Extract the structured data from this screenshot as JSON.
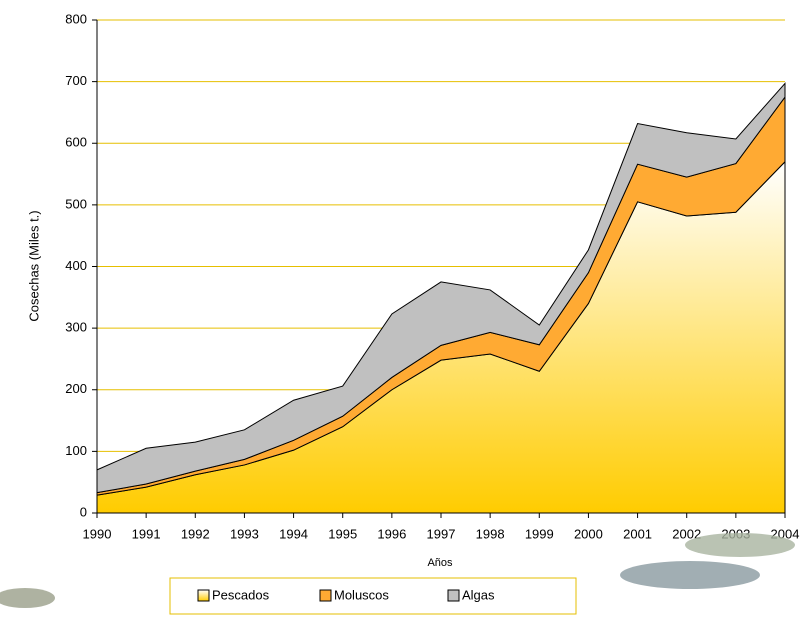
{
  "chart_data": {
    "type": "stacked-area",
    "x": [
      1990,
      1991,
      1992,
      1993,
      1994,
      1995,
      1996,
      1997,
      1998,
      1999,
      2000,
      2001,
      2002,
      2003,
      2004
    ],
    "xlim": [
      1990,
      2004
    ],
    "series": [
      {
        "name": "Pescados",
        "color": "#ffcc00",
        "values": [
          29,
          42,
          62,
          78,
          102,
          140,
          200,
          248,
          258,
          230,
          340,
          505,
          482,
          488,
          570
        ]
      },
      {
        "name": "Moluscos",
        "color": "#ffaa33",
        "values": [
          4,
          5,
          6,
          9,
          16,
          17,
          20,
          24,
          35,
          43,
          50,
          61,
          63,
          79,
          105
        ]
      },
      {
        "name": "Algas",
        "color": "#c0c0c0",
        "values": [
          37,
          58,
          47,
          48,
          65,
          49,
          103,
          103,
          69,
          32,
          37,
          66,
          72,
          40,
          22
        ]
      }
    ],
    "ylim": [
      0,
      800
    ],
    "yticks": [
      0,
      100,
      200,
      300,
      400,
      500,
      600,
      700,
      800
    ],
    "y_label": "Cosechas (Miles t.)",
    "x_label": "Años",
    "grid": true,
    "grid_color": "#e6bf00"
  }
}
